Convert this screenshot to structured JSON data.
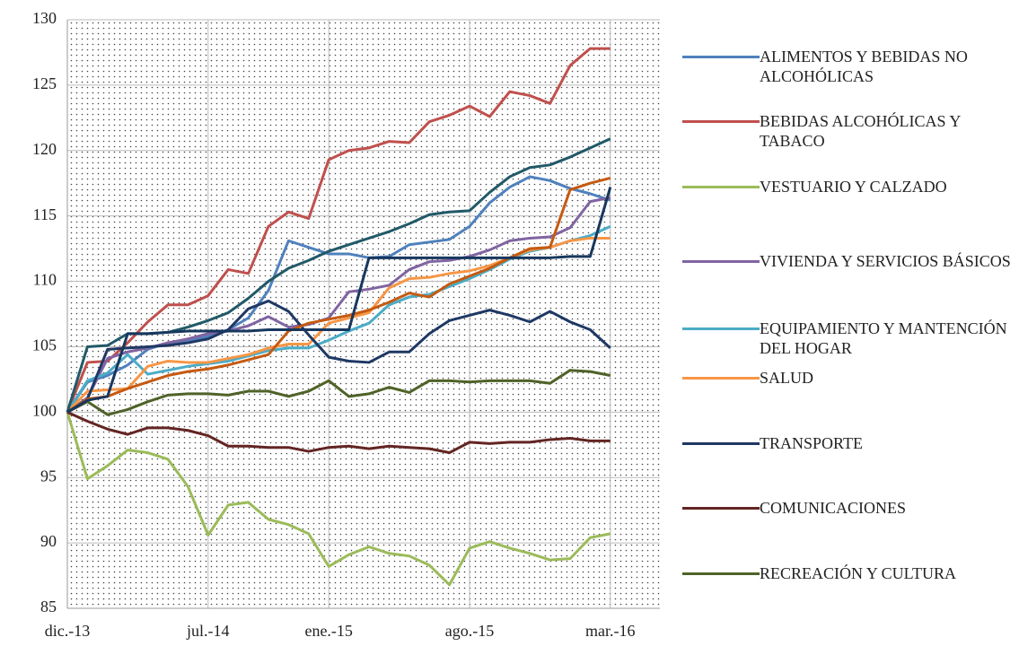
{
  "chart_data": {
    "type": "line",
    "categories": [
      "dic.-13",
      null,
      null,
      null,
      null,
      null,
      null,
      "jul.-14",
      null,
      null,
      null,
      null,
      null,
      "ene.-15",
      null,
      null,
      null,
      null,
      null,
      null,
      "ago.-15",
      null,
      null,
      null,
      null,
      null,
      null,
      "mar.-16"
    ],
    "ylim": [
      85,
      130
    ],
    "yticks": [
      85,
      90,
      95,
      100,
      105,
      110,
      115,
      120,
      125,
      130
    ],
    "grid": true,
    "series": [
      {
        "name": "ALIMENTOS Y BEBIDAS NO ALCOHÓLICAS",
        "color": "#4f81bd",
        "values": [
          100,
          102.3,
          102.8,
          103.6,
          104.8,
          105.3,
          105.4,
          105.8,
          106.3,
          107.2,
          109.3,
          113.1,
          112.6,
          112.1,
          112.1,
          111.8,
          111.9,
          112.8,
          113,
          113.2,
          114.2,
          116,
          117.2,
          118,
          117.7,
          117.1,
          116.7,
          116.2
        ]
      },
      {
        "name": "BEBIDAS ALCOHÓLICAS Y TABACO",
        "color": "#c0504d",
        "values": [
          100,
          103.8,
          103.9,
          105.3,
          106.9,
          108.2,
          108.2,
          108.9,
          110.9,
          110.6,
          114.2,
          115.3,
          114.8,
          119.3,
          120,
          120.2,
          120.7,
          120.6,
          122.2,
          122.7,
          123.4,
          122.6,
          124.5,
          124.2,
          123.6,
          126.5,
          127.8,
          127.8
        ]
      },
      {
        "name": "VESTUARIO Y CALZADO",
        "color": "#9bbb59",
        "values": [
          100,
          94.9,
          95.9,
          97.1,
          96.9,
          96.4,
          94.3,
          90.6,
          92.9,
          93.1,
          91.8,
          91.4,
          90.7,
          88.2,
          89.1,
          89.7,
          89.2,
          89,
          88.3,
          86.8,
          89.6,
          90.1,
          89.6,
          89.2,
          88.7,
          88.8,
          90.4,
          90.7
        ]
      },
      {
        "name": "VIVIENDA Y SERVICIOS BÁSICOS",
        "color": "#8064a2",
        "values": [
          100,
          101.1,
          104.1,
          104.6,
          104.9,
          105.3,
          105.6,
          106,
          106.2,
          106.6,
          107.3,
          106.5,
          106.7,
          107.2,
          109.2,
          109.4,
          109.7,
          110.9,
          111.5,
          111.6,
          111.9,
          112.4,
          113.1,
          113.3,
          113.4,
          114.1,
          116.1,
          116.4
        ]
      },
      {
        "name": "EQUIPAMIENTO Y MANTENCIÓN DEL HOGAR",
        "color": "#4bacc6",
        "values": [
          100,
          102.4,
          103,
          104.4,
          102.9,
          103.2,
          103.5,
          103.7,
          103.9,
          104.3,
          104.7,
          104.9,
          104.9,
          105.5,
          106.2,
          106.8,
          108.2,
          108.8,
          109,
          109.6,
          110.2,
          110.9,
          111.7,
          112.3,
          112.6,
          113.1,
          113.5,
          114.2
        ]
      },
      {
        "name": "SALUD",
        "color": "#f79646",
        "values": [
          100,
          101.6,
          101.7,
          101.8,
          103.5,
          103.9,
          103.8,
          103.8,
          104.1,
          104.4,
          104.9,
          105.2,
          105.2,
          106.8,
          107.2,
          107.6,
          109.5,
          110.2,
          110.3,
          110.6,
          110.8,
          111.2,
          111.8,
          112.4,
          112.6,
          113.1,
          113.3,
          113.3
        ]
      },
      {
        "name": "TRANSPORTE",
        "color": "#1f3864",
        "values": [
          100,
          101,
          104.8,
          104.9,
          105,
          105.1,
          105.3,
          105.6,
          106.3,
          107.9,
          108.5,
          107.7,
          105.9,
          104.2,
          103.9,
          103.8,
          104.6,
          104.6,
          106,
          107,
          107.4,
          107.8,
          107.4,
          106.9,
          107.7,
          106.9,
          106.3,
          104.9
        ]
      },
      {
        "name": "COMUNICACIONES",
        "color": "#632523",
        "values": [
          100,
          99.3,
          98.7,
          98.3,
          98.8,
          98.8,
          98.6,
          98.2,
          97.4,
          97.4,
          97.3,
          97.3,
          97,
          97.3,
          97.4,
          97.2,
          97.4,
          97.3,
          97.2,
          96.9,
          97.7,
          97.6,
          97.7,
          97.7,
          97.9,
          98,
          97.8,
          97.8
        ]
      },
      {
        "name": "RECREACIÓN Y CULTURA",
        "color": "#4f6228",
        "values": [
          100,
          100.8,
          99.8,
          100.2,
          100.8,
          101.3,
          101.4,
          101.4,
          101.3,
          101.6,
          101.6,
          101.2,
          101.6,
          102.4,
          101.2,
          101.4,
          101.9,
          101.5,
          102.4,
          102.4,
          102.3,
          102.4,
          102.4,
          102.4,
          102.2,
          103.2,
          103.1,
          102.8
        ]
      },
      {
        "color": "#215968",
        "values": [
          100,
          105,
          105.1,
          106,
          106,
          106.1,
          106.5,
          107,
          107.6,
          108.7,
          110,
          111,
          111.6,
          112.3,
          112.8,
          113.3,
          113.8,
          114.4,
          115.1,
          115.3,
          115.4,
          116.8,
          118,
          118.7,
          118.9,
          119.5,
          120.2,
          120.9
        ]
      },
      {
        "color": "#c55a11",
        "values": [
          100,
          101,
          101.2,
          101.8,
          102.3,
          102.8,
          103.1,
          103.3,
          103.6,
          104,
          104.4,
          106.2,
          106.8,
          107.1,
          107.4,
          107.8,
          108.4,
          109.1,
          108.8,
          109.8,
          110.4,
          111,
          111.8,
          112.5,
          112.6,
          117,
          117.5,
          117.9
        ]
      },
      {
        "color": "#17375e",
        "values": [
          100,
          100.9,
          101.2,
          106,
          106,
          106.1,
          106.2,
          106.2,
          106.2,
          106.2,
          106.3,
          106.3,
          106.3,
          106.3,
          106.3,
          111.8,
          111.8,
          111.8,
          111.8,
          111.8,
          111.8,
          111.8,
          111.8,
          111.8,
          111.8,
          111.9,
          111.9,
          117.2
        ]
      }
    ]
  }
}
